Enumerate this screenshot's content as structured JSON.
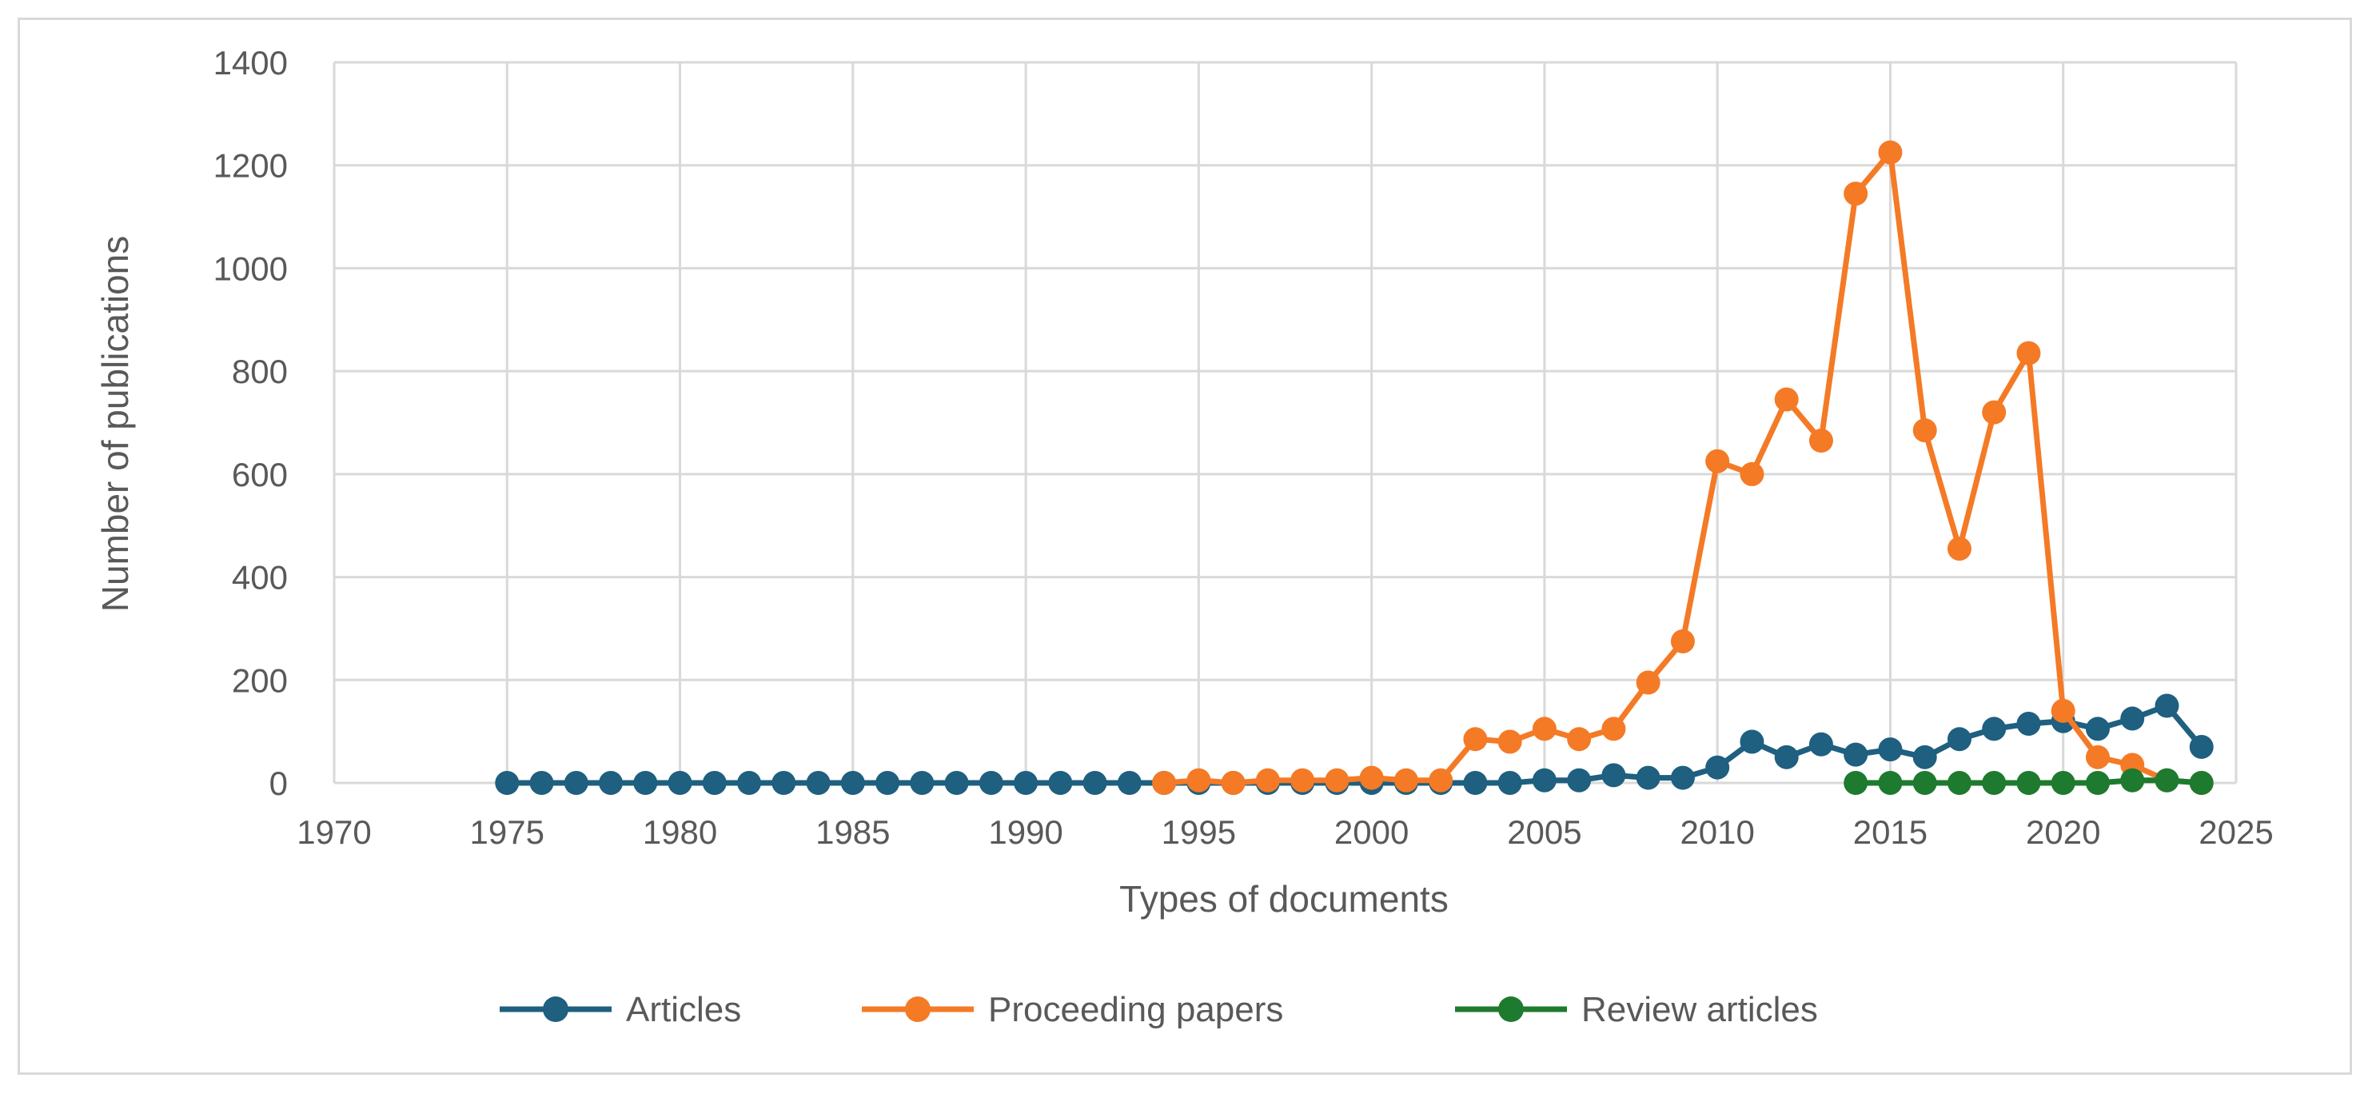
{
  "chart_data": {
    "type": "line",
    "title": "",
    "xlabel": "Types of documents",
    "ylabel": "Number of publications",
    "xlim": [
      1970,
      2025
    ],
    "ylim": [
      0,
      1400
    ],
    "x_ticks": [
      1970,
      1975,
      1980,
      1985,
      1990,
      1995,
      2000,
      2005,
      2010,
      2015,
      2020,
      2025
    ],
    "y_ticks": [
      0,
      200,
      400,
      600,
      800,
      1000,
      1200,
      1400
    ],
    "grid": true,
    "legend_position": "bottom",
    "series": [
      {
        "name": "Articles",
        "color": "#1f5f7f",
        "x": [
          1975,
          1976,
          1977,
          1978,
          1979,
          1980,
          1981,
          1982,
          1983,
          1984,
          1985,
          1986,
          1987,
          1988,
          1989,
          1990,
          1991,
          1992,
          1993,
          1994,
          1995,
          1996,
          1997,
          1998,
          1999,
          2000,
          2001,
          2002,
          2003,
          2004,
          2005,
          2006,
          2007,
          2008,
          2009,
          2010,
          2011,
          2012,
          2013,
          2014,
          2015,
          2016,
          2017,
          2018,
          2019,
          2020,
          2021,
          2022,
          2023,
          2024
        ],
        "values": [
          0,
          0,
          0,
          0,
          0,
          0,
          0,
          0,
          0,
          0,
          0,
          0,
          0,
          0,
          0,
          0,
          0,
          0,
          0,
          0,
          0,
          0,
          0,
          0,
          0,
          0,
          0,
          0,
          0,
          0,
          5,
          5,
          15,
          10,
          10,
          30,
          80,
          50,
          75,
          55,
          65,
          50,
          85,
          105,
          115,
          120,
          105,
          125,
          150,
          70
        ]
      },
      {
        "name": "Proceeding papers",
        "color": "#f47a26",
        "x": [
          1994,
          1995,
          1996,
          1997,
          1998,
          1999,
          2000,
          2001,
          2002,
          2003,
          2004,
          2005,
          2006,
          2007,
          2008,
          2009,
          2010,
          2011,
          2012,
          2013,
          2014,
          2015,
          2016,
          2017,
          2018,
          2019,
          2020,
          2021,
          2022,
          2023,
          2024
        ],
        "values": [
          0,
          5,
          0,
          5,
          5,
          5,
          10,
          5,
          5,
          85,
          80,
          105,
          85,
          105,
          195,
          275,
          625,
          600,
          745,
          665,
          1145,
          1225,
          685,
          455,
          720,
          835,
          140,
          50,
          35,
          5,
          0
        ]
      },
      {
        "name": "Review articles",
        "color": "#1e7a2e",
        "x": [
          2014,
          2015,
          2016,
          2017,
          2018,
          2019,
          2020,
          2021,
          2022,
          2023,
          2024
        ],
        "values": [
          0,
          0,
          0,
          0,
          0,
          0,
          0,
          0,
          5,
          5,
          0
        ]
      }
    ]
  }
}
